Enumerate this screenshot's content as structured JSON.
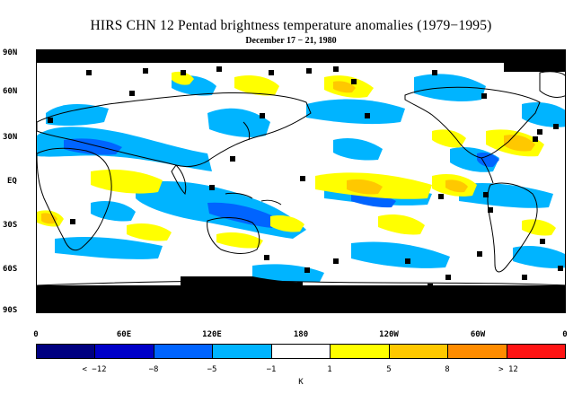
{
  "title": "HIRS CHN 12 Pentad brightness temperature anomalies (1979−1995)",
  "subtitle": "December 17 − 21, 1980",
  "lat_labels": [
    "90N",
    "60N",
    "30N",
    "EQ",
    "30S",
    "60S",
    "90S"
  ],
  "lon_labels": [
    "0",
    "60E",
    "120E",
    "180",
    "120W",
    "60W",
    "0"
  ],
  "colorbar": {
    "colors": [
      "#000080",
      "#0000c8",
      "#0064ff",
      "#00b4ff",
      "#ffffff",
      "#ffff00",
      "#ffc800",
      "#ff8c00",
      "#ff1414"
    ],
    "labels": [
      "< −12",
      "−8",
      "−5",
      "−1",
      "1",
      "5",
      "8",
      "> 12"
    ],
    "unit": "K"
  },
  "colors": {
    "land_outline": "#000000",
    "no_data": "#000000",
    "cold_anomaly": "#00b4ff",
    "strong_cold": "#0064ff",
    "warm_anomaly": "#ffff00",
    "strong_warm": "#ffc800"
  }
}
